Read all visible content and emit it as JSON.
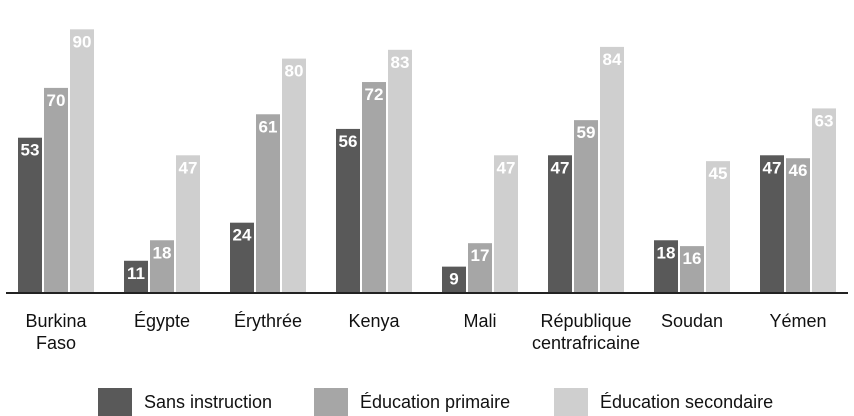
{
  "chart_data": {
    "type": "bar",
    "title": "",
    "xlabel": "",
    "ylabel": "",
    "ylim": [
      0,
      90
    ],
    "grid": false,
    "legend_position": "bottom",
    "categories": [
      [
        "Burkina",
        "Faso"
      ],
      [
        "Égypte"
      ],
      [
        "Érythrée"
      ],
      [
        "Kenya"
      ],
      [
        "Mali"
      ],
      [
        "République",
        "centrafricaine"
      ],
      [
        "Soudan"
      ],
      [
        "Yémen"
      ]
    ],
    "series": [
      {
        "name": "Sans instruction",
        "color": "#595959",
        "values": [
          53,
          11,
          24,
          56,
          9,
          47,
          18,
          47
        ]
      },
      {
        "name": "Éducation primaire",
        "color": "#a6a6a6",
        "values": [
          70,
          18,
          61,
          72,
          17,
          59,
          16,
          46
        ]
      },
      {
        "name": "Éducation secondaire",
        "color": "#cfcfcf",
        "values": [
          90,
          47,
          80,
          83,
          47,
          84,
          45,
          63
        ]
      }
    ]
  }
}
